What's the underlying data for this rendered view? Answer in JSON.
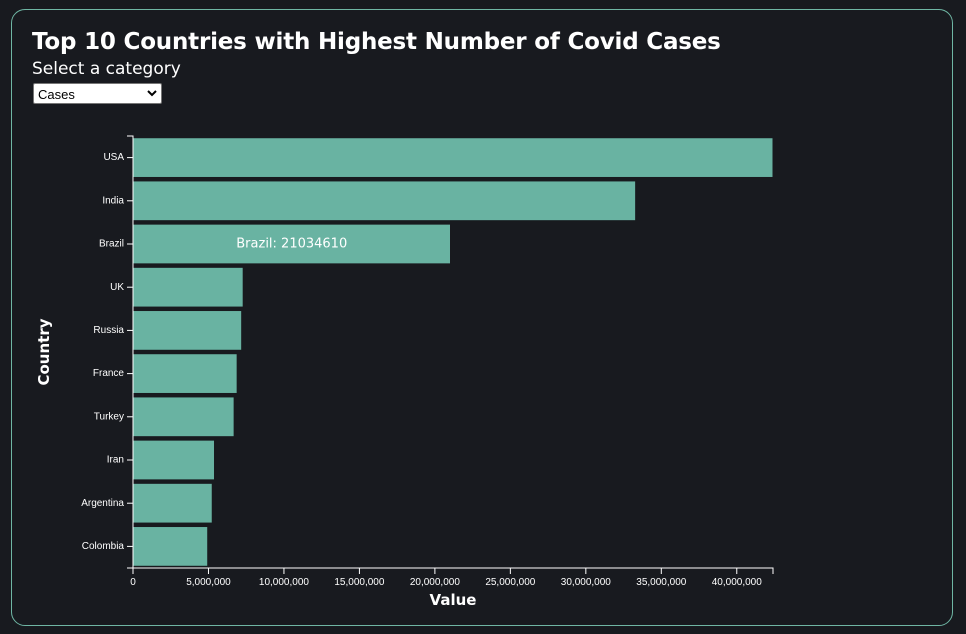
{
  "header": {
    "title": "Top 10 Countries with Highest Number of Covid Cases",
    "select_label": "Select a category"
  },
  "category_select": {
    "selected": "Cases",
    "icon": "chevron-down-icon"
  },
  "colors": {
    "background": "#181a1f",
    "border": "#6fb6a4",
    "bar": "#69b3a2",
    "text": "#ffffff"
  },
  "chart_data": {
    "type": "bar",
    "orientation": "horizontal",
    "categories": [
      "USA",
      "India",
      "Brazil",
      "UK",
      "Russia",
      "France",
      "Turkey",
      "Iran",
      "Argentina",
      "Colombia"
    ],
    "values": [
      42400000,
      33300000,
      21034610,
      7300000,
      7200000,
      6900000,
      6700000,
      5400000,
      5250000,
      4950000
    ],
    "xlabel": "Value",
    "ylabel": "Country",
    "xlim": [
      0,
      42400000
    ],
    "x_ticks": [
      0,
      5000000,
      10000000,
      15000000,
      20000000,
      25000000,
      30000000,
      35000000,
      40000000
    ],
    "x_tick_labels": [
      "0",
      "5,000,000",
      "10,000,000",
      "15,000,000",
      "20,000,000",
      "25,000,000",
      "30,000,000",
      "35,000,000",
      "40,000,000"
    ],
    "annotation": {
      "category": "Brazil",
      "text": "Brazil: 21034610"
    },
    "grid": false,
    "legend": "none"
  }
}
